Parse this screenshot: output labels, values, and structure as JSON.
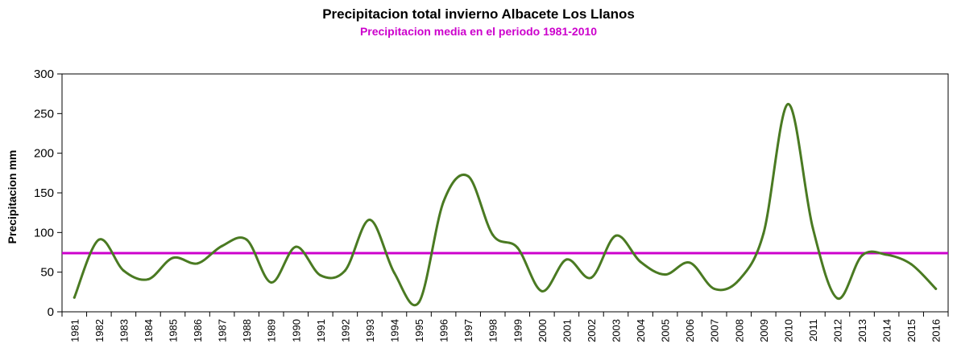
{
  "chart_data": {
    "type": "line",
    "title": "Precipitacion total invierno Albacete Los Llanos",
    "subtitle": "Precipitacion media en el periodo 1981-2010",
    "xlabel": "",
    "ylabel": "Precipitacion mm",
    "ylim": [
      0,
      300
    ],
    "yticks": [
      "0",
      "50",
      "100",
      "150",
      "200",
      "250",
      "300"
    ],
    "categories": [
      "1981",
      "1982",
      "1983",
      "1984",
      "1985",
      "1986",
      "1987",
      "1988",
      "1989",
      "1990",
      "1991",
      "1992",
      "1993",
      "1994",
      "1995",
      "1996",
      "1997",
      "1998",
      "1999",
      "2000",
      "2001",
      "2002",
      "2003",
      "2004",
      "2005",
      "2006",
      "2007",
      "2008",
      "2009",
      "2010",
      "2011",
      "2012",
      "2013",
      "2014",
      "2015",
      "2016"
    ],
    "series": [
      {
        "name": "",
        "color": "#4a7a22",
        "values": [
          18,
          91,
          52,
          41,
          68,
          61,
          83,
          91,
          37,
          82,
          46,
          52,
          116,
          49,
          12,
          139,
          171,
          97,
          81,
          26,
          66,
          43,
          96,
          63,
          47,
          62,
          29,
          40,
          99,
          262,
          106,
          17,
          71,
          72,
          60,
          29
        ]
      }
    ],
    "reference_line": {
      "label": "Precipitacion media en el periodo 1981-2010",
      "value": 74,
      "color": "#cc00cc"
    },
    "grid": false,
    "legend": "none"
  }
}
